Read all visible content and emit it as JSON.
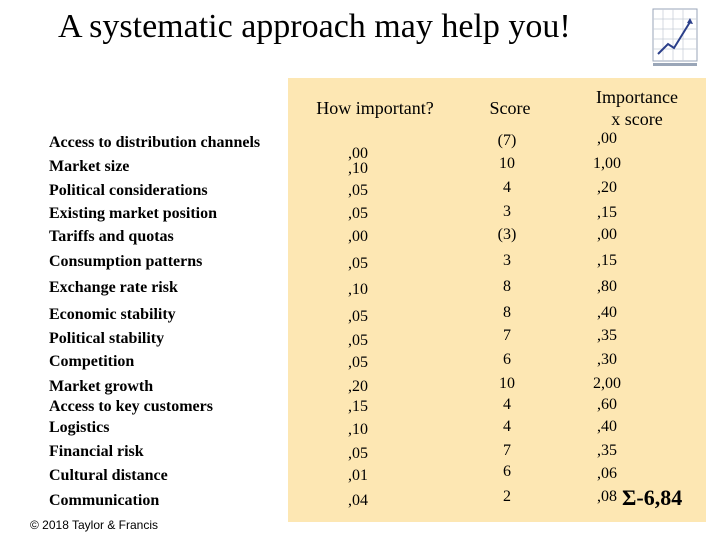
{
  "title": "A systematic approach may help you!",
  "headers": {
    "importance": "How important?",
    "score": "Score",
    "result_line1": "Importance",
    "result_line2": "x score"
  },
  "rows": [
    {
      "label": "Access to distribution channels",
      "importance": ",00",
      "score": "(7)",
      "result": ",00"
    },
    {
      "label": "Market size",
      "importance": ",10",
      "score": "10",
      "result": "1,00"
    },
    {
      "label": "Political considerations",
      "importance": ",05",
      "score": "4",
      "result": ",20"
    },
    {
      "label": "Existing market position",
      "importance": ",05",
      "score": "3",
      "result": ",15"
    },
    {
      "label": "Tariffs and quotas",
      "importance": ",00",
      "score": "(3)",
      "result": ",00"
    },
    {
      "label": "Consumption patterns",
      "importance": ",05",
      "score": "3",
      "result": ",15"
    },
    {
      "label": "Exchange rate risk",
      "importance": ",10",
      "score": "8",
      "result": ",80"
    },
    {
      "label": "Economic stability",
      "importance": ",05",
      "score": "8",
      "result": ",40"
    },
    {
      "label": "Political stability",
      "importance": ",05",
      "score": "7",
      "result": ",35"
    },
    {
      "label": "Competition",
      "importance": ",05",
      "score": "6",
      "result": ",30"
    },
    {
      "label": "Market growth",
      "importance": ",20",
      "score": "10",
      "result": "2,00"
    },
    {
      "label": "Access to key customers",
      "importance": ",15",
      "score": "4",
      "result": ",60"
    },
    {
      "label": "Logistics",
      "importance": ",10",
      "score": "4",
      "result": ",40"
    },
    {
      "label": "Financial risk",
      "importance": ",05",
      "score": "7",
      "result": ",35"
    },
    {
      "label": "Cultural distance",
      "importance": ",01",
      "score": "6",
      "result": ",06"
    },
    {
      "label": "Communication",
      "importance": ",04",
      "score": "2",
      "result": ",08"
    }
  ],
  "total": "Σ-6,84",
  "copyright": "© 2018 Taylor & Francis",
  "colors": {
    "panel": "#fde7b3"
  },
  "logo_icon": "growth-chart-logo-icon"
}
